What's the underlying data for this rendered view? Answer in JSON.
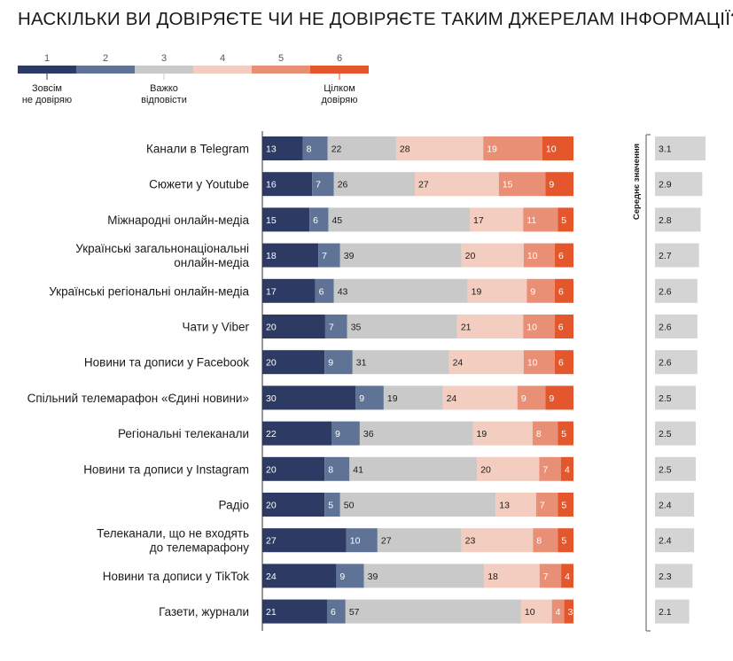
{
  "title": "НАСКІЛЬКИ ВИ ДОВІРЯЄТЕ ЧИ НЕ ДОВІРЯЄТЕ ТАКИМ ДЖЕРЕЛАМ ІНФОРМАЦІЇ?",
  "colors": {
    "1": "#2d3a63",
    "2": "#5f7396",
    "3": "#c9c9c9",
    "4": "#f2cdc0",
    "5": "#e98f76",
    "6": "#e4562b",
    "mean_bar": "#d4d4d4"
  },
  "legend": {
    "scale": [
      "1",
      "2",
      "3",
      "4",
      "5",
      "6"
    ],
    "captions": [
      {
        "index": 0,
        "lines": [
          "Зовсім",
          "не довіряю"
        ]
      },
      {
        "index": 2,
        "lines": [
          "Важко",
          "відповісти"
        ]
      },
      {
        "index": 5,
        "lines": [
          "Цілком",
          "довіряю"
        ]
      }
    ]
  },
  "chart_data": {
    "type": "bar",
    "stacked": true,
    "orientation": "horizontal",
    "unit": "%",
    "categories": [
      [
        "Канали в Telegram"
      ],
      [
        "Сюжети у Youtube"
      ],
      [
        "Міжнародні онлайн-медіа"
      ],
      [
        "Українські загальнонаціональні",
        "онлайн-медіа"
      ],
      [
        "Українські регіональні онлайн-медіа"
      ],
      [
        "Чати у Viber"
      ],
      [
        "Новини та дописи у Facebook"
      ],
      [
        "Спільний телемарафон «Єдині новини»"
      ],
      [
        "Регіональні телеканали"
      ],
      [
        "Новини та дописи у Instagram"
      ],
      [
        "Радіо"
      ],
      [
        "Телеканали, що не входять",
        "до телемарафону"
      ],
      [
        "Новини та дописи у TikTok"
      ],
      [
        "Газети, журнали"
      ]
    ],
    "series": [
      {
        "name": "1",
        "values": [
          13,
          16,
          15,
          18,
          17,
          20,
          20,
          30,
          22,
          20,
          20,
          27,
          24,
          21
        ]
      },
      {
        "name": "2",
        "values": [
          8,
          7,
          6,
          7,
          6,
          7,
          9,
          9,
          9,
          8,
          5,
          10,
          9,
          6
        ]
      },
      {
        "name": "3",
        "values": [
          22,
          26,
          45,
          39,
          43,
          35,
          31,
          19,
          36,
          41,
          50,
          27,
          39,
          57
        ]
      },
      {
        "name": "4",
        "values": [
          28,
          27,
          17,
          20,
          19,
          21,
          24,
          24,
          19,
          20,
          13,
          23,
          18,
          10
        ]
      },
      {
        "name": "5",
        "values": [
          19,
          15,
          11,
          10,
          9,
          10,
          10,
          9,
          8,
          7,
          7,
          8,
          7,
          4
        ]
      },
      {
        "name": "6",
        "values": [
          10,
          9,
          5,
          6,
          6,
          6,
          6,
          9,
          5,
          4,
          5,
          5,
          4,
          3
        ]
      }
    ],
    "means": {
      "label": "Середнє значення",
      "values": [
        "3.1",
        "2.9",
        "2.8",
        "2.7",
        "2.6",
        "2.6",
        "2.6",
        "2.5",
        "2.5",
        "2.5",
        "2.4",
        "2.4",
        "2.3",
        "2.1"
      ]
    }
  }
}
